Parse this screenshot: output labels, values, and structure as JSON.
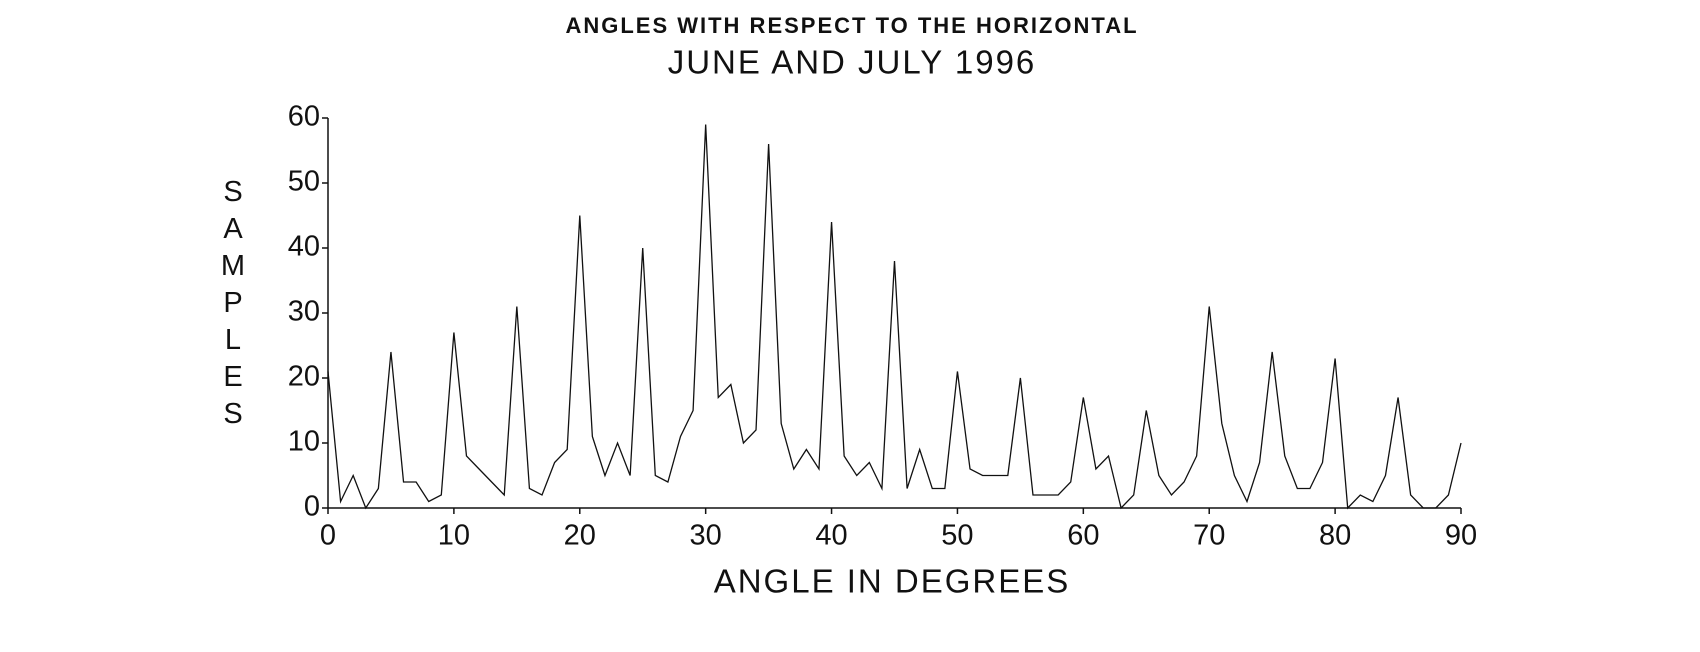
{
  "chart_data": {
    "type": "line",
    "title": "ANGLES WITH RESPECT TO THE HORIZONTAL",
    "subtitle": "JUNE AND JULY 1996",
    "x_label": "ANGLE IN DEGREES",
    "y_label": "SAMPLES",
    "x": [
      0,
      1,
      2,
      3,
      4,
      5,
      6,
      7,
      8,
      9,
      10,
      11,
      12,
      13,
      14,
      15,
      16,
      17,
      18,
      19,
      20,
      21,
      22,
      23,
      24,
      25,
      26,
      27,
      28,
      29,
      30,
      31,
      32,
      33,
      34,
      35,
      36,
      37,
      38,
      39,
      40,
      41,
      42,
      43,
      44,
      45,
      46,
      47,
      48,
      49,
      50,
      51,
      52,
      53,
      54,
      55,
      56,
      57,
      58,
      59,
      60,
      61,
      62,
      63,
      64,
      65,
      66,
      67,
      68,
      69,
      70,
      71,
      72,
      73,
      74,
      75,
      76,
      77,
      78,
      79,
      80,
      81,
      82,
      83,
      84,
      85,
      86,
      87,
      88,
      89,
      90
    ],
    "values": [
      21,
      1,
      5,
      0,
      3,
      24,
      4,
      4,
      1,
      2,
      27,
      8,
      6,
      4,
      2,
      31,
      3,
      2,
      7,
      9,
      45,
      11,
      5,
      10,
      5,
      40,
      5,
      4,
      11,
      15,
      59,
      17,
      19,
      10,
      12,
      56,
      13,
      6,
      9,
      6,
      44,
      8,
      5,
      7,
      3,
      38,
      3,
      9,
      3,
      3,
      21,
      6,
      5,
      5,
      5,
      20,
      2,
      2,
      2,
      4,
      17,
      6,
      8,
      0,
      2,
      15,
      5,
      2,
      4,
      8,
      31,
      13,
      5,
      1,
      7,
      24,
      8,
      3,
      3,
      7,
      23,
      0,
      2,
      1,
      5,
      17,
      2,
      0,
      0,
      2,
      10
    ],
    "color": "#111111",
    "xlim": [
      0,
      90
    ],
    "xticks": [
      0,
      10,
      20,
      30,
      40,
      50,
      60,
      70,
      80,
      90
    ],
    "ylim": [
      0,
      60
    ],
    "yticks": [
      0,
      10,
      20,
      30,
      40,
      50,
      60
    ]
  }
}
